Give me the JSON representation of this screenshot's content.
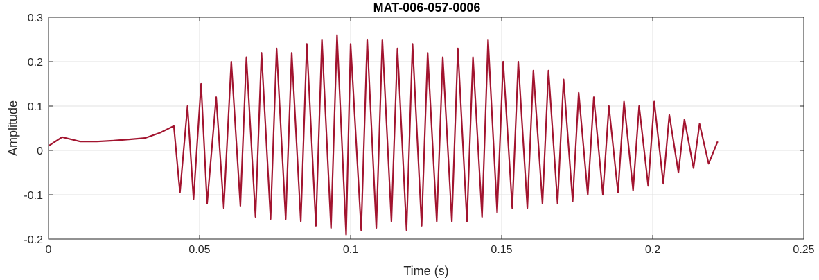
{
  "chart_data": {
    "type": "line",
    "title": "MAT-006-057-0006",
    "xlabel": "Time (s)",
    "ylabel": "Amplitude",
    "xlim": [
      0,
      0.25
    ],
    "ylim": [
      -0.2,
      0.3
    ],
    "x_ticks": [
      0,
      0.05,
      0.1,
      0.15,
      0.2,
      0.25
    ],
    "x_tick_labels": [
      "0",
      "0.05",
      "0.1",
      "0.15",
      "0.2",
      "0.25"
    ],
    "y_ticks": [
      -0.2,
      -0.1,
      0,
      0.1,
      0.2,
      0.3
    ],
    "y_tick_labels": [
      "-0.2",
      "-0.1",
      "0",
      "0.1",
      "0.2",
      "0.3"
    ],
    "grid": true,
    "legend": "none",
    "line_color": "#A2142F",
    "series": [
      {
        "x": [
          0,
          0.0045,
          0.0105,
          0.016,
          0.0215,
          0.027,
          0.032,
          0.037,
          0.0415,
          0.0435,
          0.046,
          0.048,
          0.0505,
          0.0525,
          0.0555,
          0.058,
          0.0605,
          0.0635,
          0.0655,
          0.0685,
          0.0705,
          0.0735,
          0.0755,
          0.0785,
          0.0805,
          0.0835,
          0.0855,
          0.0885,
          0.0905,
          0.0935,
          0.0955,
          0.0985,
          0.1,
          0.1035,
          0.1055,
          0.1085,
          0.1105,
          0.1135,
          0.1155,
          0.1185,
          0.1205,
          0.1235,
          0.1255,
          0.1285,
          0.1305,
          0.1335,
          0.1355,
          0.1385,
          0.1405,
          0.1435,
          0.1455,
          0.1485,
          0.1505,
          0.1535,
          0.1555,
          0.1585,
          0.1605,
          0.1635,
          0.1655,
          0.1685,
          0.1705,
          0.1735,
          0.1755,
          0.1785,
          0.1805,
          0.1835,
          0.1855,
          0.1885,
          0.1905,
          0.1935,
          0.1955,
          0.1985,
          0.2005,
          0.2035,
          0.2055,
          0.2085,
          0.2105,
          0.2135,
          0.2155,
          0.2185,
          0.2215
        ],
        "y": [
          0.01,
          0.03,
          0.02,
          0.02,
          0.022,
          0.025,
          0.028,
          0.04,
          0.055,
          -0.095,
          0.1,
          -0.11,
          0.15,
          -0.12,
          0.12,
          -0.13,
          0.2,
          -0.125,
          0.21,
          -0.15,
          0.22,
          -0.155,
          0.23,
          -0.155,
          0.22,
          -0.16,
          0.24,
          -0.17,
          0.25,
          -0.175,
          0.26,
          -0.19,
          0.24,
          -0.18,
          0.25,
          -0.175,
          0.25,
          -0.16,
          0.23,
          -0.18,
          0.24,
          -0.17,
          0.22,
          -0.16,
          0.21,
          -0.16,
          0.23,
          -0.16,
          0.21,
          -0.15,
          0.25,
          -0.14,
          0.2,
          -0.13,
          0.2,
          -0.13,
          0.18,
          -0.12,
          0.18,
          -0.12,
          0.16,
          -0.115,
          0.13,
          -0.1,
          0.12,
          -0.1,
          0.1,
          -0.095,
          0.11,
          -0.09,
          0.1,
          -0.08,
          0.11,
          -0.075,
          0.08,
          -0.05,
          0.07,
          -0.04,
          0.06,
          -0.03,
          0.02
        ]
      }
    ]
  }
}
